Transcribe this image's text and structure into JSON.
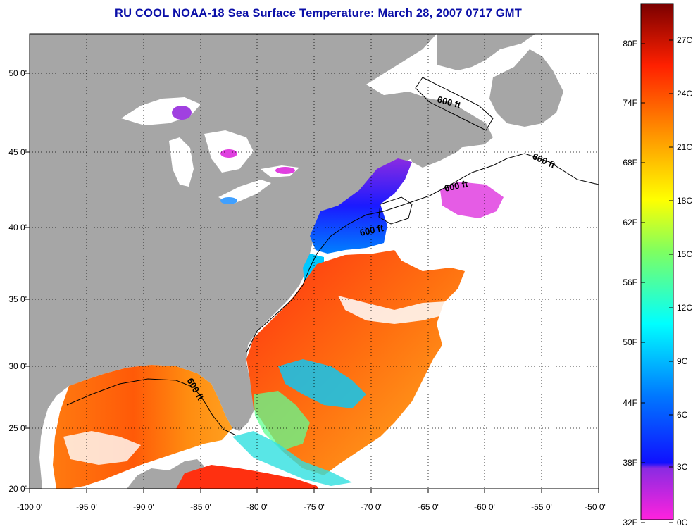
{
  "title": "RU COOL  NOAA-18  Sea Surface Temperature:  March 28, 2007 0717 GMT",
  "map": {
    "lon_range": [
      -100,
      -50
    ],
    "lat_range": [
      20,
      52.5
    ],
    "lon_labels": [
      "-100 0'",
      "-95 0'",
      "-90 0'",
      "-85 0'",
      "-80 0'",
      "-75 0'",
      "-70 0'",
      "-65 0'",
      "-60 0'",
      "-55 0'",
      "-50 0'"
    ],
    "lat_labels": [
      "20 0'",
      "25 0'",
      "30 0'",
      "35 0'",
      "40 0'",
      "45 0'",
      "50 0'"
    ],
    "contour_label": "600 ft",
    "land_color": "#a6a6a6",
    "cloud_color": "#ffffff"
  },
  "colorbar": {
    "fahrenheit_labels": [
      "32F",
      "38F",
      "44F",
      "50F",
      "56F",
      "62F",
      "68F",
      "74F",
      "80F"
    ],
    "celsius_labels": [
      "0C",
      "3C",
      "6C",
      "9C",
      "12C",
      "15C",
      "18C",
      "21C",
      "24C",
      "27C"
    ],
    "colors": [
      "#ff22dd",
      "#8a2be2",
      "#1010ff",
      "#0078ff",
      "#00ffff",
      "#7fff60",
      "#ffff00",
      "#ff9900",
      "#ff2000",
      "#7a0000"
    ]
  }
}
